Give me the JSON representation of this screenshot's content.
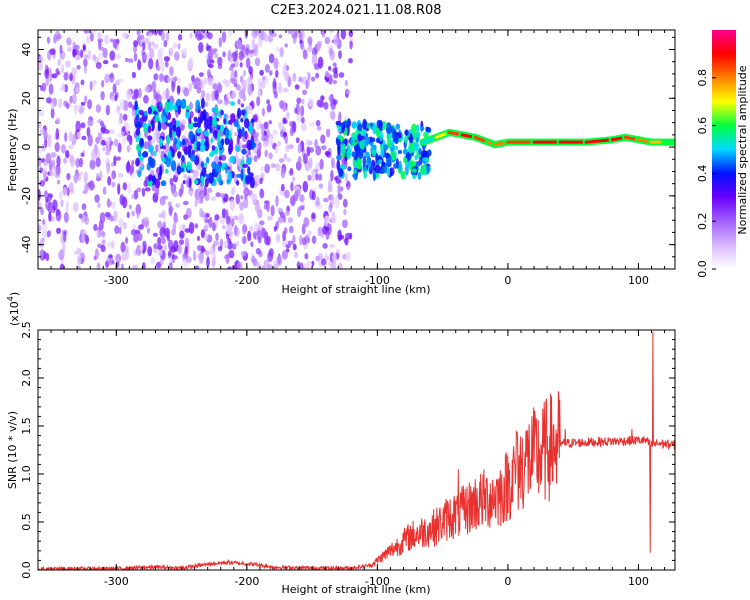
{
  "figure_title": "C2E3.2024.021.11.08.R08",
  "chart_data": [
    {
      "type": "heatmap",
      "xlabel": "Height of straight line (km)",
      "ylabel": "Frequency (Hz)",
      "xlim": [
        -360,
        128
      ],
      "ylim": [
        -50,
        48
      ],
      "x_ticks": [
        -300,
        -200,
        -100,
        0,
        100
      ],
      "y_ticks": [
        -40,
        -20,
        0,
        20,
        40
      ],
      "colorbar": {
        "label": "Normalized spectral amplitude",
        "range": [
          0.0,
          1.0
        ],
        "ticks": [
          "0.0",
          "0.2",
          "0.4",
          "0.6",
          "0.8"
        ],
        "tick_values": [
          0.0,
          0.2,
          0.4,
          0.6,
          0.8
        ],
        "colors": [
          "#ffffff",
          "#d9b8ff",
          "#a260ff",
          "#6a00ff",
          "#0010ff",
          "#00d8ff",
          "#00ff40",
          "#ffff00",
          "#ff8000",
          "#ff0000",
          "#ff0090"
        ]
      },
      "regions": [
        {
          "x_range": [
            -360,
            -120
          ],
          "freq_range": [
            -50,
            48
          ],
          "amplitude": [
            0.05,
            0.3
          ],
          "note": "broadband noise with vertical stripes"
        },
        {
          "x_range": [
            -285,
            -195
          ],
          "freq_range": [
            -15,
            18
          ],
          "amplitude": [
            0.3,
            0.55
          ]
        },
        {
          "x_range": [
            -130,
            -60
          ],
          "freq_range": [
            -12,
            10
          ],
          "amplitude": [
            0.35,
            0.6
          ]
        }
      ],
      "ridge": {
        "x": [
          -65,
          -55,
          -45,
          -35,
          -25,
          -15,
          -10,
          0,
          20,
          40,
          60,
          80,
          90,
          100,
          110,
          120,
          128
        ],
        "freq": [
          2,
          4,
          6,
          5,
          4,
          2,
          1,
          2,
          2,
          2,
          2,
          3,
          4,
          3,
          2,
          2,
          2
        ],
        "amplitude": [
          0.5,
          0.7,
          0.85,
          0.9,
          0.85,
          0.8,
          0.8,
          0.85,
          0.9,
          0.9,
          0.9,
          0.9,
          0.85,
          0.8,
          0.75,
          0.6,
          0.55
        ]
      }
    },
    {
      "type": "line",
      "xlabel": "Height of straight line (km)",
      "ylabel": "SNR (10 * v/v)",
      "y_multiplier": "(x10",
      "y_multiplier_exp": "4",
      "y_multiplier_close": ")",
      "xlim": [
        -360,
        128
      ],
      "ylim": [
        0.0,
        2.5
      ],
      "x_ticks": [
        -300,
        -200,
        -100,
        0,
        100
      ],
      "y_ticks": [
        "0.0",
        "0.5",
        "1.0",
        "1.5",
        "2.0",
        "2.5"
      ],
      "y_tick_values": [
        0.0,
        0.5,
        1.0,
        1.5,
        2.0,
        2.5
      ],
      "series": [
        {
          "color": "#e8312f",
          "x": [
            -360,
            -300,
            -270,
            -250,
            -230,
            -215,
            -205,
            -195,
            -180,
            -150,
            -120,
            -105,
            -95,
            -85,
            -75,
            -65,
            -55,
            -45,
            -35,
            -25,
            -15,
            -5,
            5,
            15,
            25,
            35,
            45,
            60,
            80,
            100,
            105,
            110,
            115,
            128
          ],
          "y": [
            0.01,
            0.015,
            0.03,
            0.02,
            0.06,
            0.08,
            0.07,
            0.06,
            0.03,
            0.02,
            0.02,
            0.05,
            0.15,
            0.25,
            0.35,
            0.4,
            0.45,
            0.55,
            0.6,
            0.7,
            0.75,
            0.8,
            1.0,
            1.15,
            1.2,
            1.3,
            1.32,
            1.33,
            1.34,
            1.35,
            1.35,
            1.3,
            1.32,
            1.3
          ],
          "spikes": [
            {
              "x": -38,
              "y": 1.05
            },
            {
              "x": 7,
              "y": 1.43
            },
            {
              "x": 32,
              "y": 1.4
            },
            {
              "x": 44,
              "y": 1.47
            },
            {
              "x": 95,
              "y": 1.47
            },
            {
              "x": 109,
              "y": 0.18
            },
            {
              "x": 111,
              "y": 2.48
            }
          ]
        }
      ]
    }
  ]
}
